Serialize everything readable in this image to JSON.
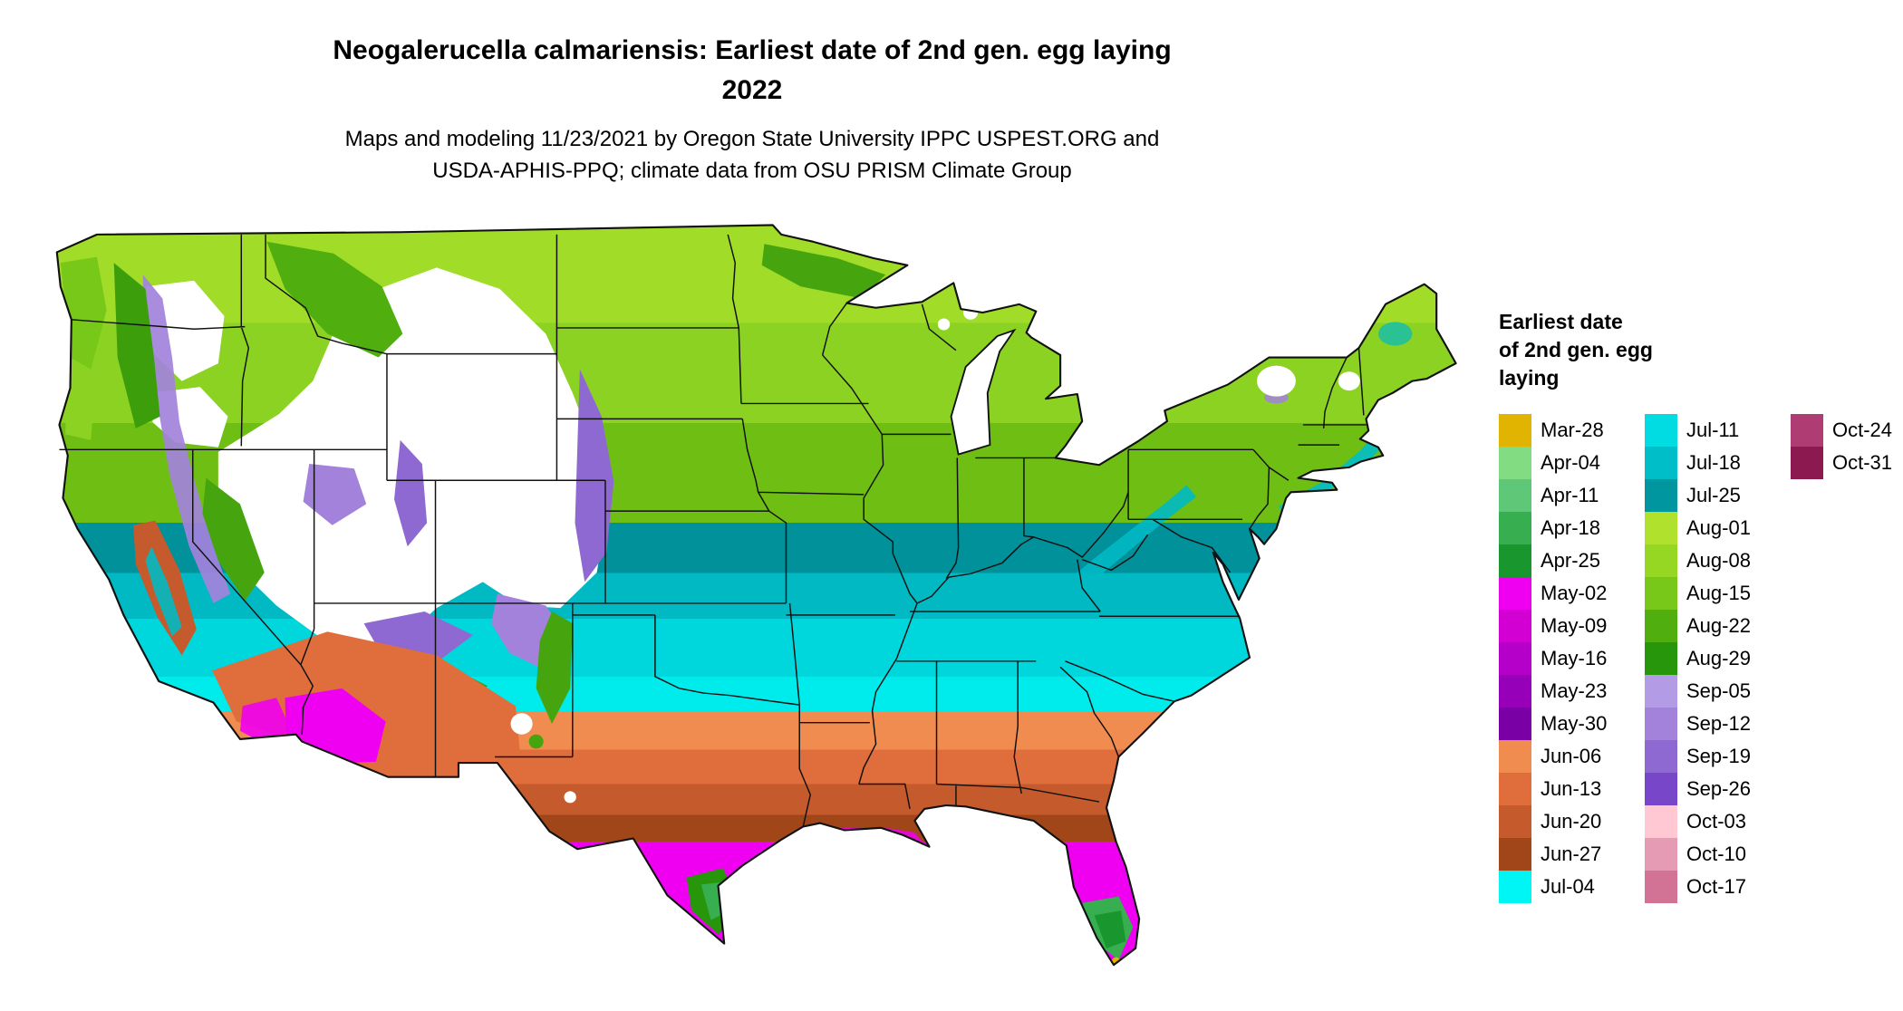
{
  "title": {
    "line1": "Neogalerucella calmariensis: Earliest date of 2nd gen. egg laying",
    "line2": "2022"
  },
  "subtitle": {
    "line1": "Maps and modeling 11/23/2021 by Oregon State University IPPC USPEST.ORG and",
    "line2": "USDA-APHIS-PPQ; climate data from OSU PRISM Climate Group"
  },
  "map": {
    "name": "contiguous-united-states",
    "description": "Choropleth map of the contiguous United States shaded by earliest date of 2nd generation egg laying; white areas indicate no 2nd generation"
  },
  "legend": {
    "title_lines": [
      "Earliest date",
      "of 2nd gen. egg",
      "laying"
    ],
    "columns": [
      {
        "entries": [
          {
            "label": "Mar-28",
            "color": "#E0B400"
          },
          {
            "label": "Apr-04",
            "color": "#82DC82"
          },
          {
            "label": "Apr-11",
            "color": "#5FC878"
          },
          {
            "label": "Apr-18",
            "color": "#37AF50"
          },
          {
            "label": "Apr-25",
            "color": "#19962D"
          },
          {
            "label": "May-02",
            "color": "#F000F0"
          },
          {
            "label": "May-09",
            "color": "#D200D2"
          },
          {
            "label": "May-16",
            "color": "#B400C8"
          },
          {
            "label": "May-23",
            "color": "#9600B9"
          },
          {
            "label": "May-30",
            "color": "#7800A5"
          },
          {
            "label": "Jun-06",
            "color": "#F08C50"
          },
          {
            "label": "Jun-13",
            "color": "#E06E3C"
          },
          {
            "label": "Jun-20",
            "color": "#C55A2D"
          },
          {
            "label": "Jun-27",
            "color": "#A04619"
          },
          {
            "label": "Jul-04",
            "color": "#00F5F5"
          }
        ]
      },
      {
        "entries": [
          {
            "label": "Jul-11",
            "color": "#00DCE1"
          },
          {
            "label": "Jul-18",
            "color": "#00BEC8"
          },
          {
            "label": "Jul-25",
            "color": "#0096A0"
          },
          {
            "label": "Aug-01",
            "color": "#AFE12D"
          },
          {
            "label": "Aug-08",
            "color": "#96D723"
          },
          {
            "label": "Aug-15",
            "color": "#78C819"
          },
          {
            "label": "Aug-22",
            "color": "#50AF0F"
          },
          {
            "label": "Aug-29",
            "color": "#28960A"
          },
          {
            "label": "Sep-05",
            "color": "#B49BE6"
          },
          {
            "label": "Sep-12",
            "color": "#A382DC"
          },
          {
            "label": "Sep-19",
            "color": "#8F69D2"
          },
          {
            "label": "Sep-26",
            "color": "#7846C8"
          },
          {
            "label": "Oct-03",
            "color": "#FFC8D2"
          },
          {
            "label": "Oct-10",
            "color": "#E69BB4"
          },
          {
            "label": "Oct-17",
            "color": "#D27396"
          }
        ]
      },
      {
        "entries": [
          {
            "label": "Oct-24",
            "color": "#AF3C73"
          },
          {
            "label": "Oct-31",
            "color": "#8C1950"
          }
        ]
      }
    ]
  }
}
